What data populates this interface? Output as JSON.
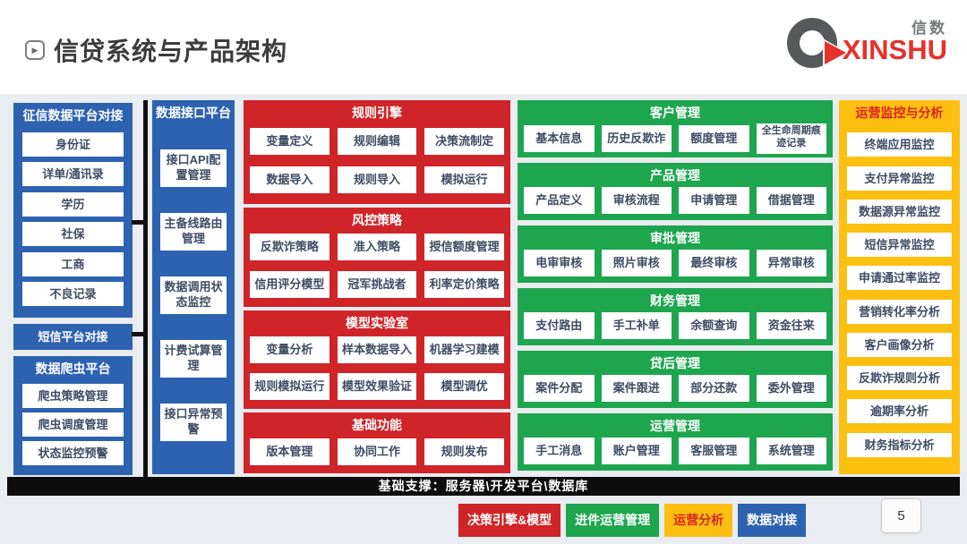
{
  "header": {
    "title": "信贷系统与产品架构",
    "title_icon": "play-badge-icon",
    "logo": {
      "icon": "q-arrow-logo-icon",
      "cn": "信数",
      "en": "XINSHU"
    }
  },
  "colors": {
    "blue": "#2d62b0",
    "red": "#cf2428",
    "green": "#1ea64e",
    "yellow": "#fdbf10",
    "bar_black": "#0d0d0d",
    "canvas_bg": "#e9ecf0",
    "logo_red": "#e5322b",
    "logo_gray": "#57585a"
  },
  "columns": {
    "credit_data": {
      "title": "征信数据平台对接",
      "items": [
        "身份证",
        "详单/通讯录",
        "学历",
        "社保",
        "工商",
        "不良记录"
      ]
    },
    "sms_platform": {
      "title": "短信平台对接"
    },
    "crawler": {
      "title": "数据爬虫平台",
      "items": [
        "爬虫策略管理",
        "爬虫调度管理",
        "状态监控预警"
      ]
    },
    "data_interface": {
      "title": "数据接口平台",
      "items": [
        "接口API配置管理",
        "主备线路由管理",
        "数据调用状态监控",
        "计费试算管理",
        "接口异常预警"
      ]
    },
    "decision_sections": [
      {
        "title": "规则引擎",
        "items": [
          "变量定义",
          "规则编辑",
          "决策流制定",
          "数据导入",
          "规则导入",
          "模拟运行"
        ]
      },
      {
        "title": "风控策略",
        "items": [
          "反欺诈策略",
          "准入策略",
          "授信额度管理",
          "信用评分模型",
          "冠军挑战者",
          "利率定价策略"
        ]
      },
      {
        "title": "模型实验室",
        "items": [
          "变量分析",
          "样本数据导入",
          "机器学习建模",
          "规则模拟运行",
          "模型效果验证",
          "模型调优"
        ]
      },
      {
        "title": "基础功能",
        "items": [
          "版本管理",
          "协同工作",
          "规则发布"
        ]
      }
    ],
    "operation_sections": [
      {
        "title": "客户管理",
        "items": [
          "基本信息",
          "历史反欺诈",
          "额度管理",
          "全生命周期痕迹记录"
        ]
      },
      {
        "title": "产品管理",
        "items": [
          "产品定义",
          "审核流程",
          "申请管理",
          "借据管理"
        ]
      },
      {
        "title": "审批管理",
        "items": [
          "电审审核",
          "照片审核",
          "最终审核",
          "异常审核"
        ]
      },
      {
        "title": "财务管理",
        "items": [
          "支付路由",
          "手工补单",
          "余额查询",
          "资金往来"
        ]
      },
      {
        "title": "贷后管理",
        "items": [
          "案件分配",
          "案件跟进",
          "部分还款",
          "委外管理"
        ]
      },
      {
        "title": "运营管理",
        "items": [
          "手工消息",
          "账户管理",
          "客服管理",
          "系统管理"
        ]
      }
    ],
    "monitoring": {
      "title": "运营监控与分析",
      "items": [
        "终端应用监控",
        "支付异常监控",
        "数据源异常监控",
        "短信异常监控",
        "申请通过率监控",
        "营销转化率分析",
        "客户画像分析",
        "反欺诈规则分析",
        "逾期率分析",
        "财务指标分析"
      ]
    }
  },
  "foundation_bar": "基础支撑：服务器\\开发平台\\数据库",
  "legend": [
    {
      "label": "决策引擎&模型",
      "color": "#cf2428",
      "text_color": "#ffffff"
    },
    {
      "label": "进件运营管理",
      "color": "#1ea64e",
      "text_color": "#ffffff"
    },
    {
      "label": "运营分析",
      "color": "#fdbf10",
      "text_color": "#d8231f"
    },
    {
      "label": "数据对接",
      "color": "#2d62b0",
      "text_color": "#ffffff"
    }
  ],
  "page_number": "5"
}
